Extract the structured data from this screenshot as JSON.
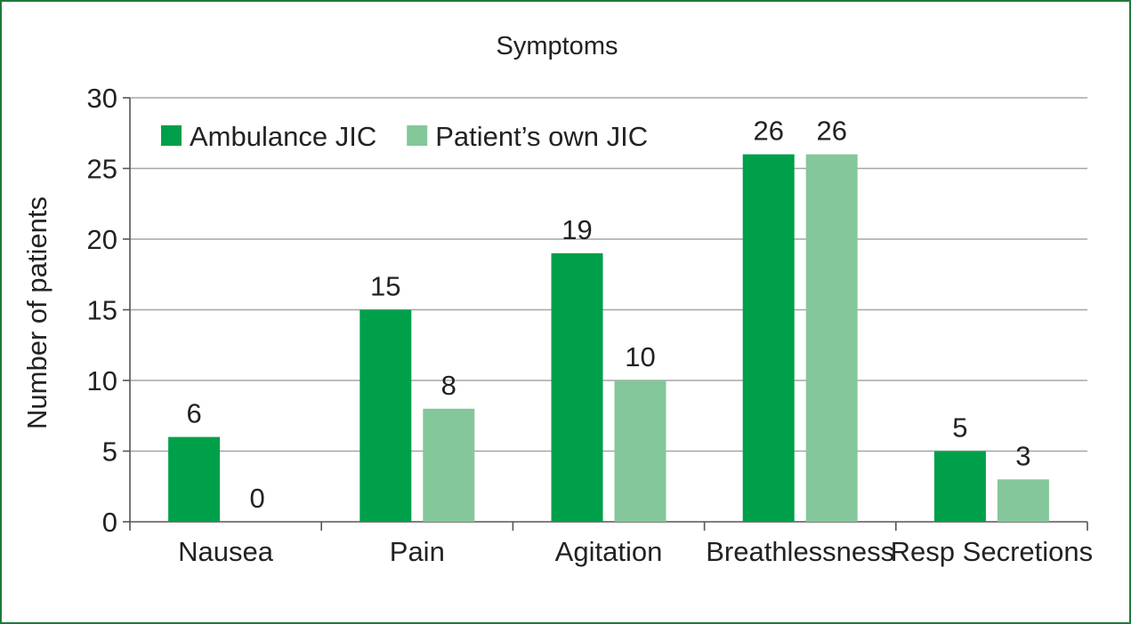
{
  "chart_data": {
    "type": "bar",
    "title": "Symptoms",
    "xlabel": "",
    "ylabel": "Number of patients",
    "categories": [
      "Nausea",
      "Pain",
      "Agitation",
      "Breathlessness",
      "Resp Secretions"
    ],
    "series": [
      {
        "name": "Ambulance JIC",
        "values": [
          6,
          15,
          19,
          26,
          5
        ],
        "color": "#00a04a"
      },
      {
        "name": "Patient’s own JIC",
        "values": [
          0,
          8,
          10,
          26,
          3
        ],
        "color": "#84c79a"
      }
    ],
    "data_labels": [
      [
        "6",
        "15",
        "19",
        "26",
        "5"
      ],
      [
        "0",
        "8",
        "10",
        "26",
        "3"
      ]
    ],
    "ylim": [
      0,
      30
    ],
    "yticks": [
      0,
      5,
      10,
      15,
      20,
      25,
      30
    ],
    "grid": true,
    "legend_position": "top-left",
    "colors": {
      "frame": "#1f7a3c",
      "grid": "#a6a6a6",
      "axis": "#555555"
    }
  }
}
